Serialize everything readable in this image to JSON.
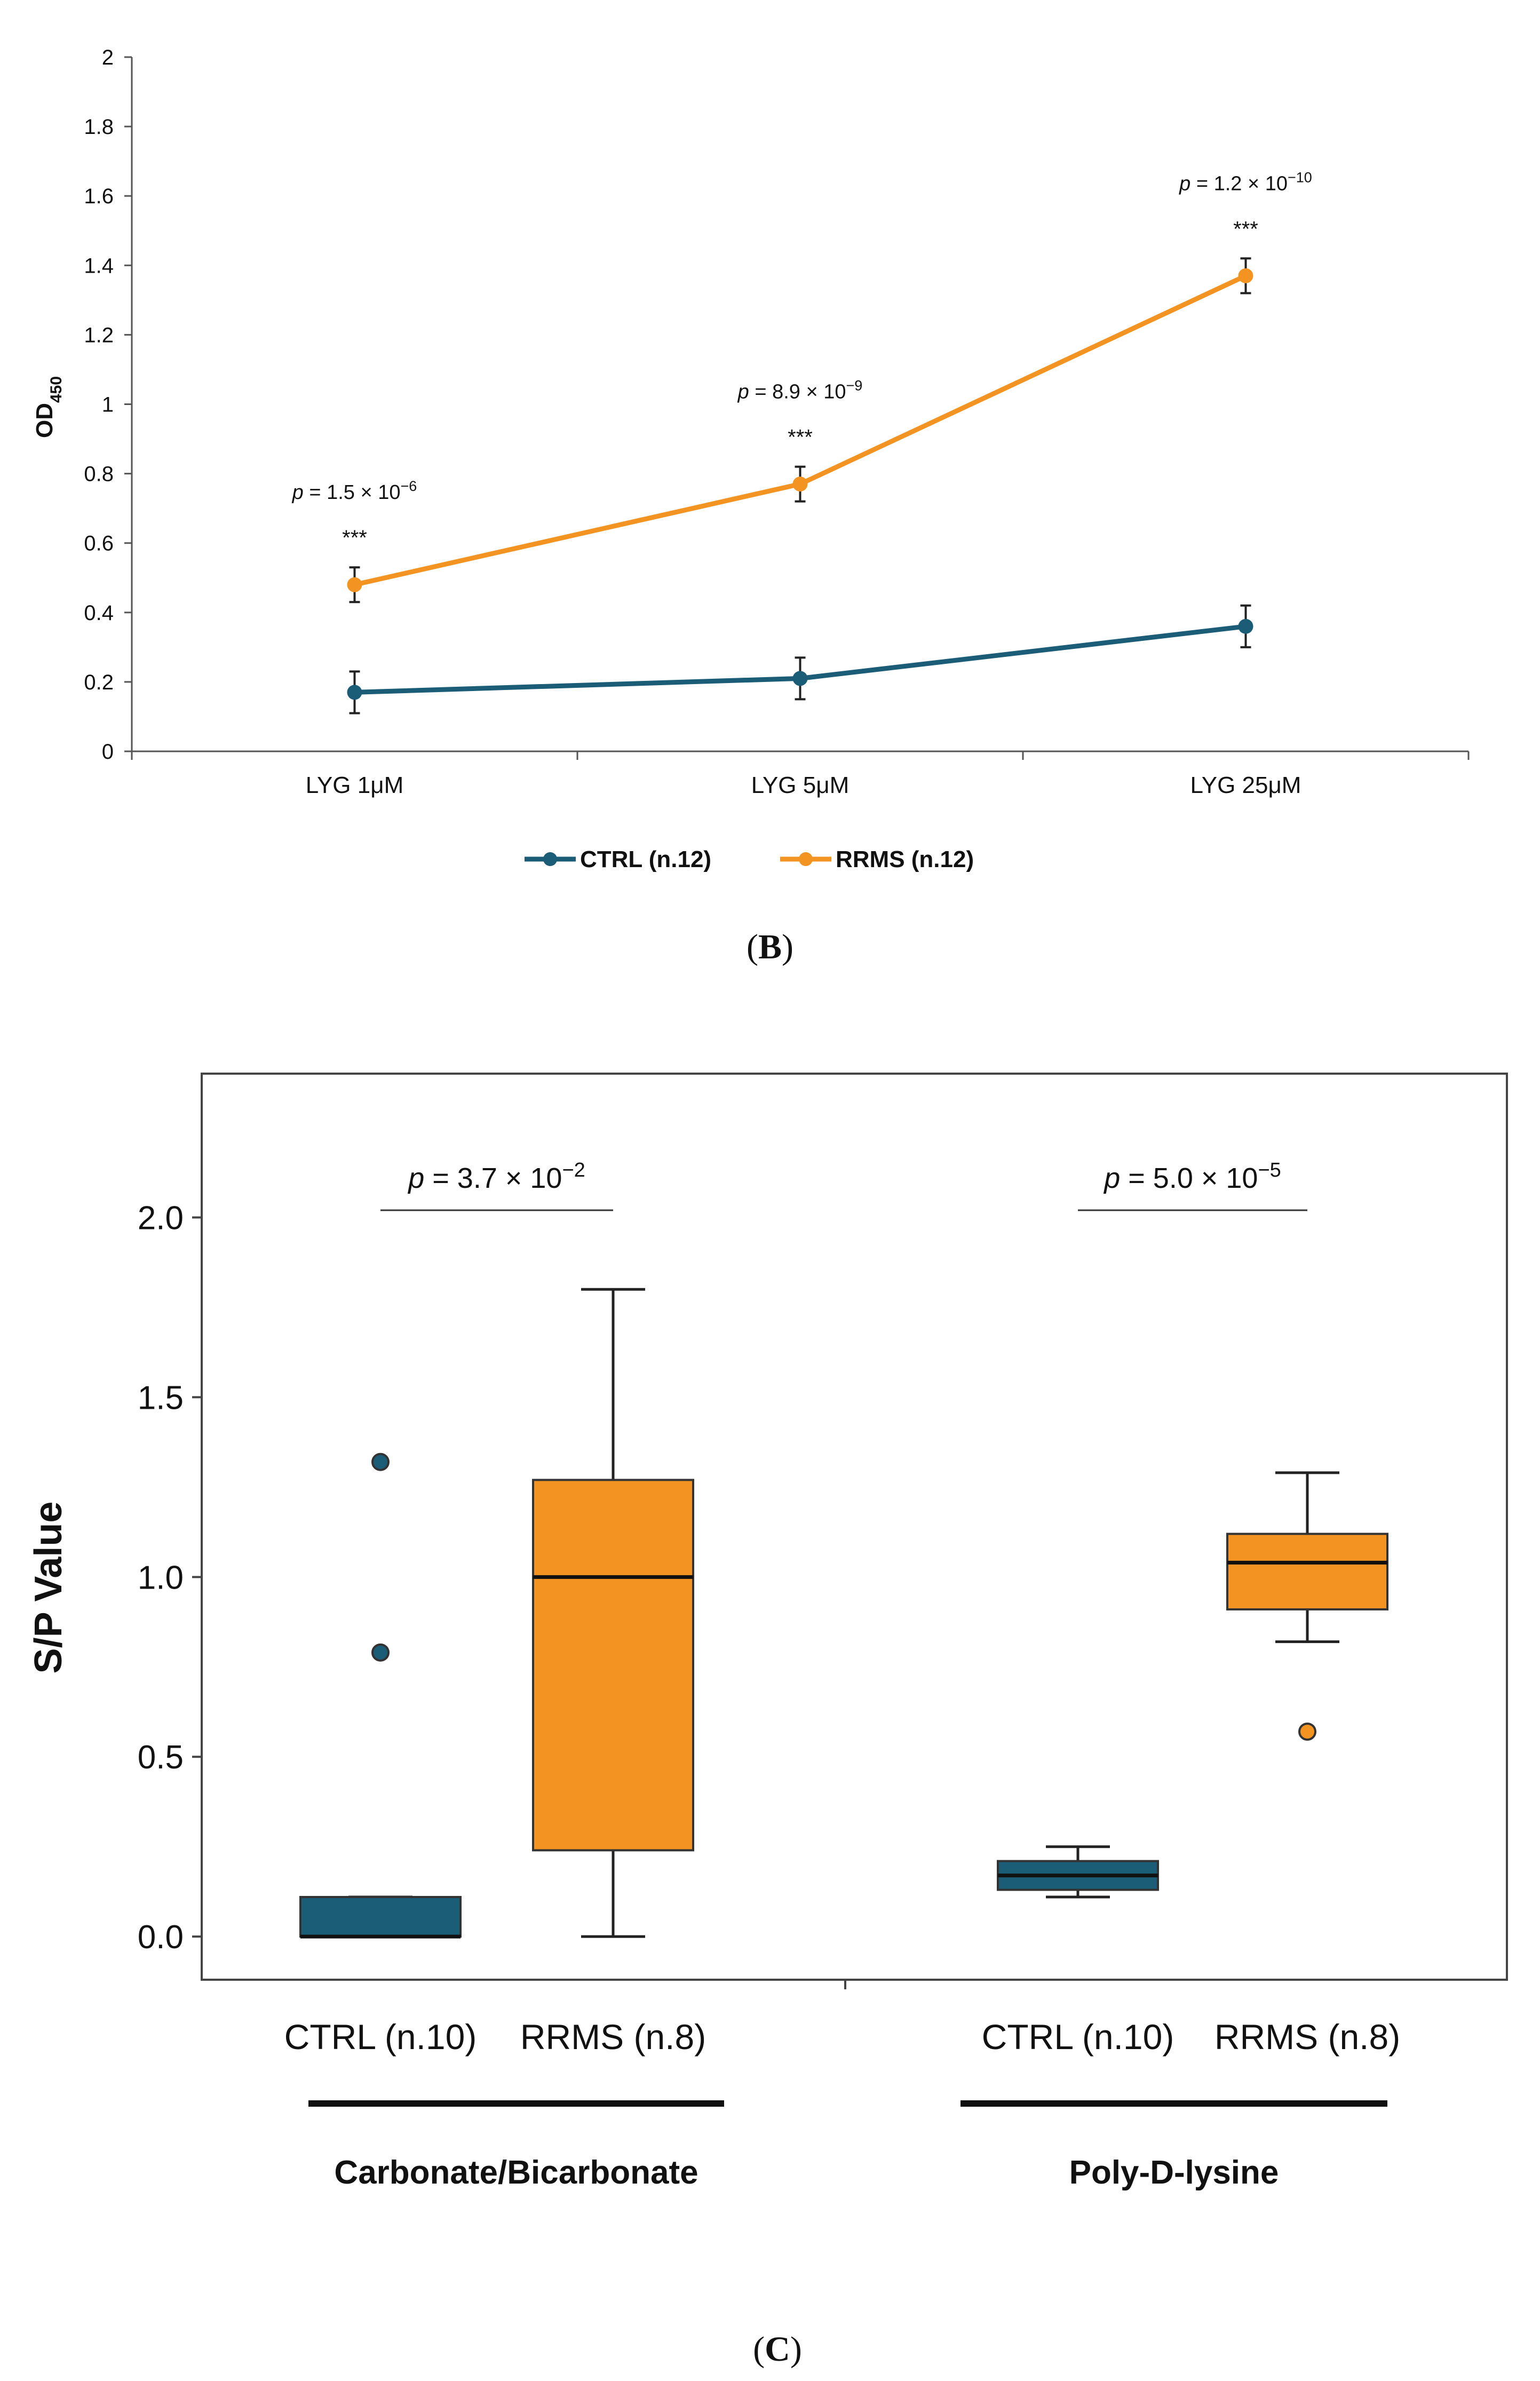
{
  "colors": {
    "ctrl": "#1b5c77",
    "rrms": "#f39422",
    "axis": "#333333",
    "text": "#111111"
  },
  "chart_data": [
    {
      "type": "line",
      "panel_label": {
        "open": "(",
        "letter": "B",
        "close": ")"
      },
      "title": "",
      "ylabel": {
        "main": "OD",
        "sub": "450"
      },
      "xlabel": "",
      "ylim": [
        0,
        2
      ],
      "yticks": [
        "0",
        "0.2",
        "0.4",
        "0.6",
        "0.8",
        "1",
        "1.2",
        "1.4",
        "1.6",
        "1.8",
        "2"
      ],
      "categories": [
        "LYG 1μM",
        "LYG 5μM",
        "LYG 25μM"
      ],
      "legend_position": "bottom-center",
      "series": [
        {
          "name": "CTRL (n.12)",
          "color_key": "ctrl",
          "values": [
            0.17,
            0.21,
            0.36
          ],
          "errors": [
            0.06,
            0.06,
            0.06
          ]
        },
        {
          "name": "RRMS (n.12)",
          "color_key": "rrms",
          "values": [
            0.48,
            0.77,
            1.37
          ],
          "errors": [
            0.05,
            0.05,
            0.05
          ]
        }
      ],
      "annotations": [
        {
          "category_index": 0,
          "stars": "***",
          "p_label": "p",
          "p_text": " = 1.5 × 10",
          "p_exp": "−6"
        },
        {
          "category_index": 1,
          "stars": "***",
          "p_label": "p",
          "p_text": " = 8.9 × 10",
          "p_exp": "−9"
        },
        {
          "category_index": 2,
          "stars": "***",
          "p_label": "p",
          "p_text": " = 1.2 × 10",
          "p_exp": "−10"
        }
      ]
    },
    {
      "type": "box",
      "panel_label": {
        "open": "(",
        "letter": "C",
        "close": ")"
      },
      "title": "",
      "ylabel": "S/P Value",
      "xlabel": "",
      "ylim": [
        -0.12,
        2.4
      ],
      "yticks": [
        "0.0",
        "0.5",
        "1.0",
        "1.5",
        "2.0"
      ],
      "grid": false,
      "boxes": [
        {
          "label": "CTRL (n.10)",
          "color_key": "ctrl",
          "min": 0.0,
          "q1": 0.0,
          "median": 0.0,
          "q3": 0.11,
          "max": 0.11,
          "outliers": [
            1.32,
            0.79
          ]
        },
        {
          "label": "RRMS (n.8)",
          "color_key": "rrms",
          "min": 0.0,
          "q1": 0.24,
          "median": 1.0,
          "q3": 1.27,
          "max": 1.8,
          "outliers": []
        },
        {
          "label": "CTRL (n.10)",
          "color_key": "ctrl",
          "min": 0.11,
          "q1": 0.13,
          "median": 0.17,
          "q3": 0.21,
          "max": 0.25,
          "outliers": []
        },
        {
          "label": "RRMS (n.8)",
          "color_key": "rrms",
          "min": 0.82,
          "q1": 0.91,
          "median": 1.04,
          "q3": 1.12,
          "max": 1.29,
          "outliers": [
            0.57
          ]
        }
      ],
      "groups": [
        {
          "label": "Carbonate/Bicarbonate",
          "box_indices": [
            0,
            1
          ]
        },
        {
          "label": "Poly-D-lysine",
          "box_indices": [
            2,
            3
          ]
        }
      ],
      "comparisons": [
        {
          "box_indices": [
            0,
            1
          ],
          "y": 2.02,
          "p_label": "p",
          "p_text": " = 3.7 × 10",
          "p_exp": "−2"
        },
        {
          "box_indices": [
            2,
            3
          ],
          "y": 2.02,
          "p_label": "p",
          "p_text": " = 5.0 × 10",
          "p_exp": "−5"
        }
      ]
    }
  ]
}
